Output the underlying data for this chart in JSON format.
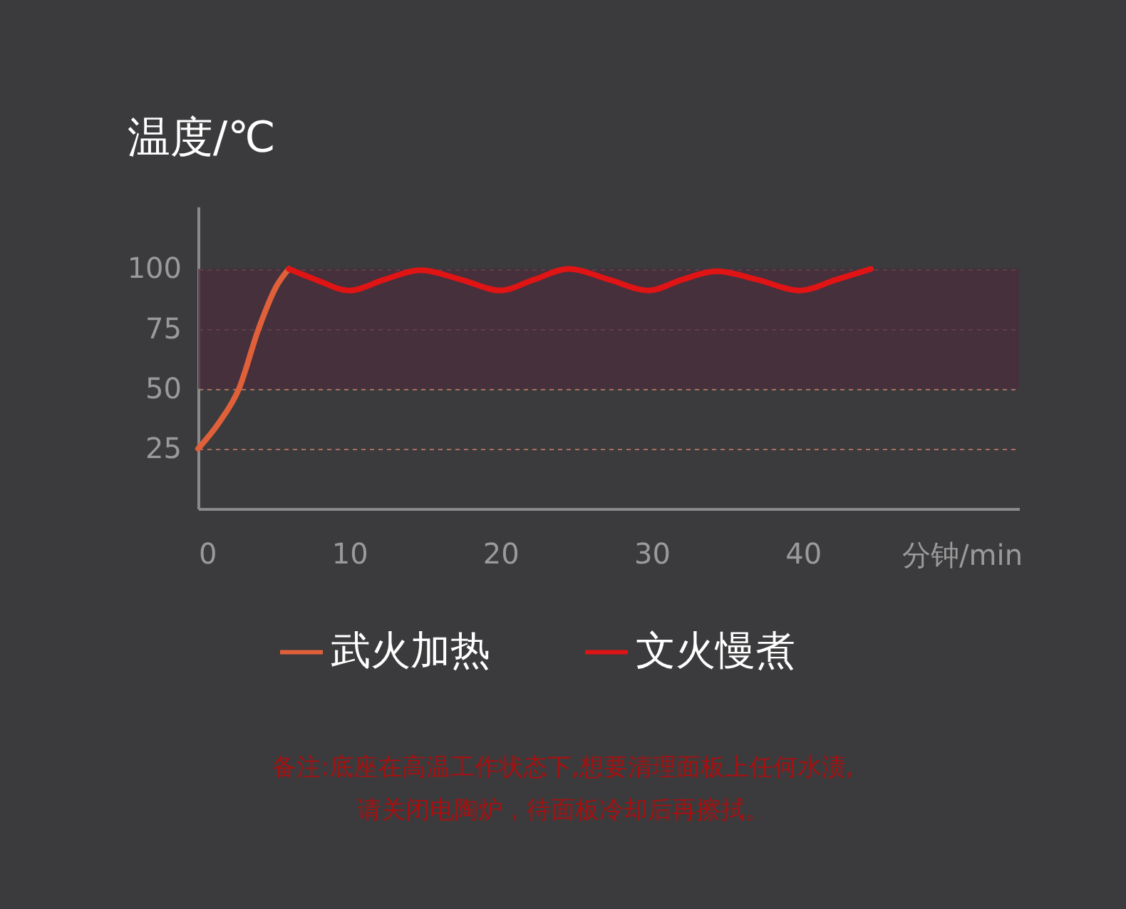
{
  "chart_data": {
    "type": "line",
    "ylabel": "温度/℃",
    "xlabel": "分钟/min",
    "xlim": [
      0,
      54.3
    ],
    "xticks": [
      0,
      10,
      20,
      30,
      40
    ],
    "ylim": [
      0,
      126
    ],
    "yticks": [
      25,
      50,
      75,
      100
    ],
    "grid": "y",
    "legend": "bottom",
    "bands": [
      {
        "axis": "y",
        "from": 50,
        "to": 100,
        "color": "#4a2d3c"
      }
    ],
    "series": [
      {
        "name": "武火加热",
        "color": "#e0603a",
        "x": [
          0,
          1.4,
          2.7,
          4.0,
          5.2,
          6.0
        ],
        "values": [
          25,
          36,
          50,
          75,
          93,
          100
        ]
      },
      {
        "name": "文火慢煮",
        "color": "#e01414",
        "x": [
          6.0,
          7.8,
          10,
          12.3,
          14.7,
          17.4,
          20,
          22.2,
          24.5,
          27.2,
          29.8,
          32,
          34.3,
          37,
          39.8,
          42.2,
          44.5
        ],
        "values": [
          100,
          95.5,
          91,
          95.5,
          99.5,
          95.5,
          91,
          95.5,
          100,
          95.5,
          91,
          95.5,
          99,
          95.5,
          91,
          95.5,
          100
        ]
      }
    ],
    "annotations": [
      "备注:底座在高温工作状态下,想要清理面板上任何水渍,",
      "请关闭电陶炉，待面板冷却后再擦拭。"
    ]
  }
}
